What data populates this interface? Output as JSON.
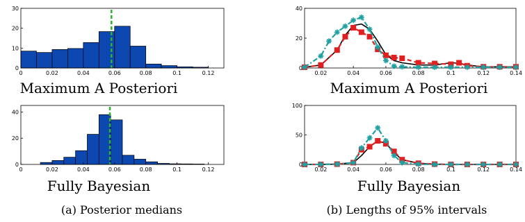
{
  "chart_data": [
    {
      "type": "bar",
      "title": "Maximum A Posteriori",
      "xlim": [
        0,
        0.13
      ],
      "ylim": [
        0,
        30
      ],
      "xticks": [
        0,
        0.02,
        0.04,
        0.06,
        0.08,
        0.1,
        0.12
      ],
      "xtick_labels": [
        "0",
        "0.02",
        "0.04",
        "0.06",
        "0.08",
        "0.1",
        "0.12"
      ],
      "yticks": [
        0,
        10,
        20,
        30
      ],
      "ytick_labels": [
        "0",
        "10",
        "20",
        "30"
      ],
      "bin_width": 0.01,
      "bin_starts": [
        0,
        0.01,
        0.02,
        0.03,
        0.04,
        0.05,
        0.06,
        0.07,
        0.08,
        0.09,
        0.1,
        0.11
      ],
      "values": [
        8.5,
        7.8,
        9.3,
        9.8,
        12.8,
        18.3,
        21,
        11,
        2,
        1.2,
        0.6,
        0.4
      ],
      "marker_line_x": 0.058,
      "bar_color": "#0d47b0",
      "marker_color": "#2db52d"
    },
    {
      "type": "bar",
      "title": "Fully Bayesian",
      "xlim": [
        0,
        0.13
      ],
      "ylim": [
        0,
        45
      ],
      "xticks": [
        0,
        0.02,
        0.04,
        0.06,
        0.08,
        0.1,
        0.12
      ],
      "xtick_labels": [
        "0",
        "0.02",
        "0.04",
        "0.06",
        "0.08",
        "0.1",
        "0.12"
      ],
      "yticks": [
        0,
        20,
        40
      ],
      "ytick_labels": [
        "0",
        "20",
        "40"
      ],
      "bin_width": 0.0075,
      "bin_starts": [
        0.0125,
        0.02,
        0.0275,
        0.035,
        0.0425,
        0.05,
        0.0575,
        0.065,
        0.0725,
        0.08,
        0.0875,
        0.095,
        0.1025,
        0.11
      ],
      "values": [
        1.5,
        3,
        5.5,
        10.5,
        23,
        38,
        34,
        7,
        4,
        2,
        0.8,
        0.5,
        0.4,
        0.3
      ],
      "marker_line_x": 0.057,
      "bar_color": "#0d47b0",
      "marker_color": "#2db52d"
    },
    {
      "type": "line",
      "title": "Maximum A Posteriori",
      "xlim": [
        0.01,
        0.14
      ],
      "ylim": [
        0,
        40
      ],
      "xticks": [
        0.02,
        0.04,
        0.06,
        0.08,
        0.1,
        0.12,
        0.14
      ],
      "xtick_labels": [
        "0.02",
        "0.04",
        "0.06",
        "0.08",
        "0.1",
        "0.12",
        "0.14"
      ],
      "yticks": [
        0,
        20,
        40
      ],
      "ytick_labels": [
        "0",
        "20",
        "40"
      ],
      "series": [
        {
          "style": "solid",
          "color": "#000000",
          "marker": "none",
          "x": [
            0.01,
            0.02,
            0.03,
            0.035,
            0.04,
            0.045,
            0.05,
            0.055,
            0.06,
            0.065,
            0.07,
            0.08,
            0.09,
            0.1,
            0.105,
            0.11,
            0.12,
            0.13,
            0.14
          ],
          "y": [
            0.5,
            2,
            12,
            22,
            28.5,
            29.5,
            26,
            18,
            9,
            5,
            3.5,
            2,
            2,
            3.5,
            3.2,
            2,
            0.8,
            0.8,
            0.8
          ]
        },
        {
          "style": "dashed",
          "color": "#e02020",
          "marker": "square",
          "x": [
            0.01,
            0.02,
            0.03,
            0.035,
            0.04,
            0.045,
            0.05,
            0.055,
            0.06,
            0.065,
            0.07,
            0.08,
            0.09,
            0.1,
            0.105,
            0.11,
            0.12,
            0.13,
            0.14
          ],
          "y": [
            0.5,
            2,
            12,
            21,
            27,
            24,
            21,
            12.5,
            8.5,
            7,
            6.5,
            3.5,
            3,
            2.5,
            3.5,
            1.5,
            0.8,
            0.8,
            0.8
          ]
        },
        {
          "style": "dashdot",
          "color": "#20a0a0",
          "marker": "asterisk",
          "x": [
            0.01,
            0.02,
            0.025,
            0.03,
            0.035,
            0.04,
            0.045,
            0.05,
            0.055,
            0.06,
            0.065,
            0.07,
            0.08,
            0.09,
            0.1,
            0.11,
            0.12,
            0.13,
            0.14
          ],
          "y": [
            0.5,
            8,
            18,
            24,
            28,
            32,
            34,
            26,
            14,
            5,
            1.2,
            0.8,
            0.5,
            0.5,
            0.5,
            0.5,
            0.5,
            0.5,
            0.5
          ]
        }
      ]
    },
    {
      "type": "line",
      "title": "Fully Bayesian",
      "xlim": [
        0.01,
        0.14
      ],
      "ylim": [
        0,
        100
      ],
      "xticks": [
        0.02,
        0.04,
        0.06,
        0.08,
        0.1,
        0.12,
        0.14
      ],
      "xtick_labels": [
        "0.02",
        "0.04",
        "0.06",
        "0.08",
        "0.1",
        "0.12",
        "0.14"
      ],
      "yticks": [
        0,
        50,
        100
      ],
      "ytick_labels": [
        "0",
        "50",
        "100"
      ],
      "series": [
        {
          "style": "solid",
          "color": "#000000",
          "marker": "none",
          "x": [
            0.01,
            0.02,
            0.03,
            0.04,
            0.045,
            0.05,
            0.055,
            0.06,
            0.065,
            0.07,
            0.08,
            0.09,
            0.1,
            0.11,
            0.12,
            0.13,
            0.14
          ],
          "y": [
            0,
            0,
            0.5,
            3,
            15,
            30,
            40,
            36,
            20,
            8,
            2,
            0.5,
            0,
            0,
            0,
            0,
            0
          ]
        },
        {
          "style": "dashed",
          "color": "#e02020",
          "marker": "square",
          "x": [
            0.01,
            0.02,
            0.03,
            0.04,
            0.045,
            0.05,
            0.055,
            0.06,
            0.065,
            0.07,
            0.08,
            0.09,
            0.1,
            0.11,
            0.12,
            0.13,
            0.14
          ],
          "y": [
            0,
            0,
            0.5,
            3,
            25,
            30,
            40,
            35,
            22,
            8,
            2,
            0.5,
            0,
            0,
            0,
            0,
            0
          ]
        },
        {
          "style": "dashdot",
          "color": "#20a0a0",
          "marker": "asterisk",
          "x": [
            0.01,
            0.02,
            0.03,
            0.04,
            0.045,
            0.05,
            0.055,
            0.06,
            0.065,
            0.07,
            0.08,
            0.09,
            0.1,
            0.11,
            0.12,
            0.13,
            0.14
          ],
          "y": [
            0,
            0,
            0.5,
            3,
            28,
            45,
            62,
            40,
            15,
            3,
            0.5,
            0,
            0,
            0,
            0,
            0,
            0
          ]
        }
      ]
    }
  ],
  "captions": {
    "a": "(a) Posterior medians",
    "b": "(b) Lengths of 95% intervals"
  }
}
